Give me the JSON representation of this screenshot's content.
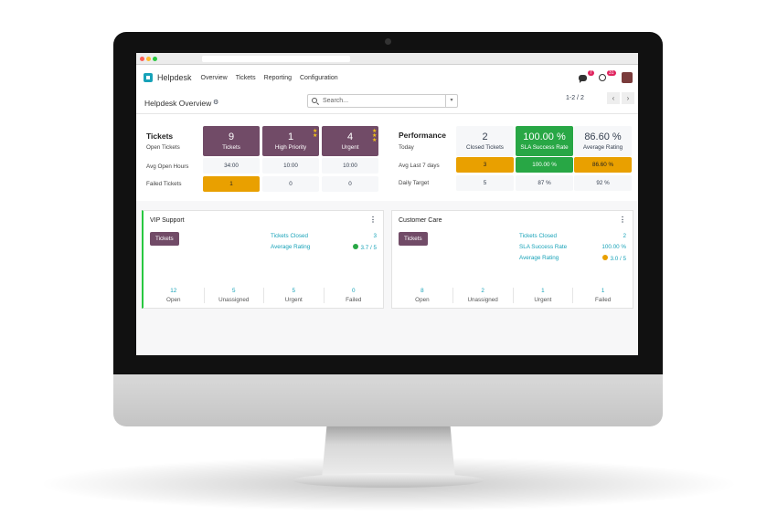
{
  "app": {
    "name": "Helpdesk",
    "menu": [
      "Overview",
      "Tickets",
      "Reporting",
      "Configuration"
    ],
    "messages_badge": "7",
    "activities_badge": "31"
  },
  "control": {
    "title": "Helpdesk Overview",
    "search_placeholder": "Search...",
    "pager": "1-2 / 2"
  },
  "tickets": {
    "heading": "Tickets",
    "row_labels": [
      "Open Tickets",
      "Avg Open Hours",
      "Failed Tickets"
    ],
    "columns": [
      {
        "value": "9",
        "label": "Tickets",
        "stars": 0,
        "avg_hours": "34:00",
        "failed": "1"
      },
      {
        "value": "1",
        "label": "High Priority",
        "stars": 2,
        "avg_hours": "10:00",
        "failed": "0"
      },
      {
        "value": "4",
        "label": "Urgent",
        "stars": 3,
        "avg_hours": "10:00",
        "failed": "0"
      }
    ]
  },
  "performance": {
    "heading": "Performance",
    "row_labels": [
      "Today",
      "Avg Last 7 days",
      "Daily Target"
    ],
    "columns": [
      {
        "value": "2",
        "label": "Closed Tickets",
        "avg7": "3",
        "target": "5"
      },
      {
        "value": "100.00 %",
        "label": "SLA Success Rate",
        "avg7": "100.00 %",
        "target": "87 %"
      },
      {
        "value": "86.60 %",
        "label": "Average Rating",
        "avg7": "86.60 %",
        "target": "92 %"
      }
    ]
  },
  "teams": [
    {
      "name": "VIP Support",
      "button": "Tickets",
      "stats": [
        {
          "label": "Tickets Closed",
          "value": "3"
        },
        {
          "label": "Average Rating",
          "value": "3.7 / 5"
        }
      ],
      "counts": [
        {
          "n": "12",
          "label": "Open"
        },
        {
          "n": "5",
          "label": "Unassigned"
        },
        {
          "n": "5",
          "label": "Urgent"
        },
        {
          "n": "0",
          "label": "Failed"
        }
      ]
    },
    {
      "name": "Customer Care",
      "button": "Tickets",
      "stats": [
        {
          "label": "Tickets Closed",
          "value": "2"
        },
        {
          "label": "SLA Success Rate",
          "value": "100.00 %"
        },
        {
          "label": "Average Rating",
          "value": "3.0 / 5"
        }
      ],
      "counts": [
        {
          "n": "8",
          "label": "Open"
        },
        {
          "n": "2",
          "label": "Unassigned"
        },
        {
          "n": "1",
          "label": "Urgent"
        },
        {
          "n": "1",
          "label": "Failed"
        }
      ]
    }
  ],
  "colors": {
    "primary": "#714b67",
    "warning": "#e9a000",
    "success": "#28a745",
    "link": "#17a2b8"
  }
}
